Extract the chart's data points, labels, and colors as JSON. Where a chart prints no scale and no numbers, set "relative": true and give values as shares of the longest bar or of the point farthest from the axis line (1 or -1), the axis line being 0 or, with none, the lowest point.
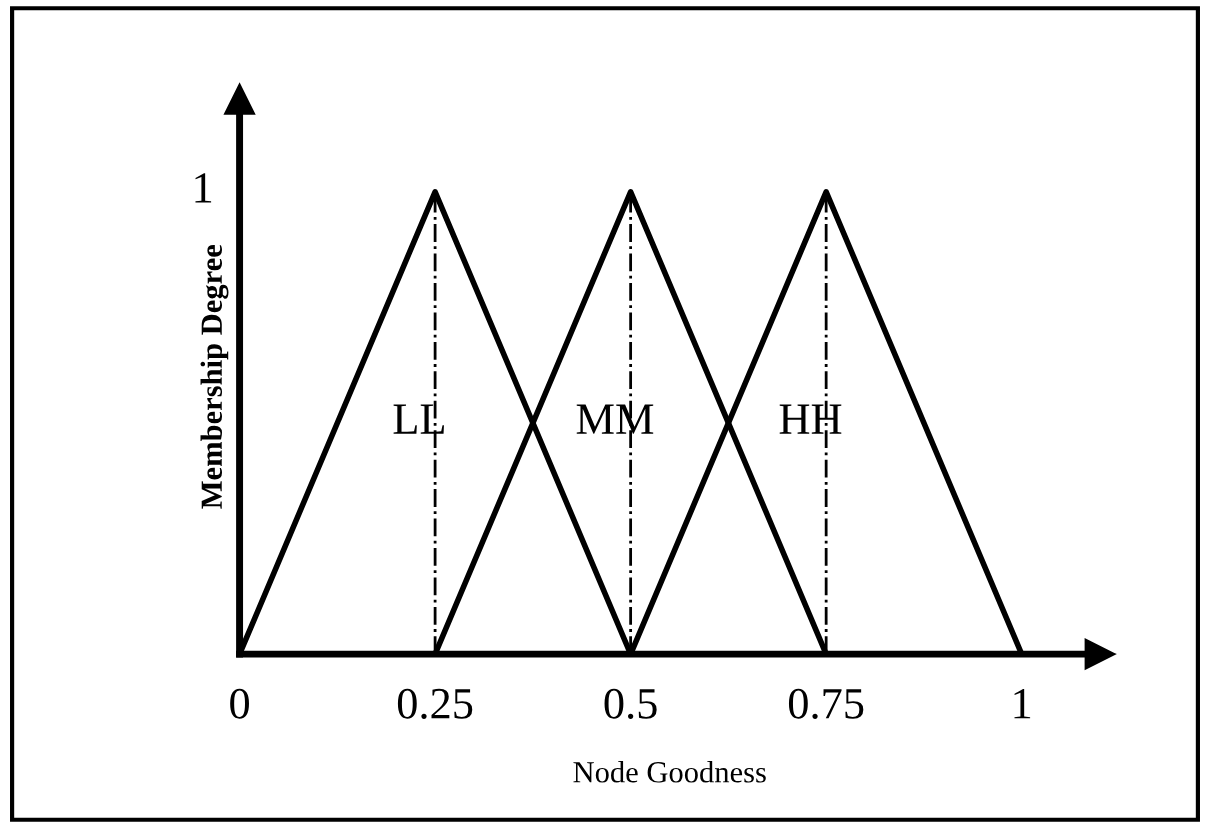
{
  "chart_data": {
    "type": "line",
    "xlabel": "Node Goodness",
    "ylabel": "Membership Degree",
    "series": [
      {
        "name": "LL",
        "color": "#000000",
        "x": [
          0,
          0.25,
          0.5
        ],
        "values": [
          0,
          1,
          0
        ]
      },
      {
        "name": "MM",
        "color": "#000000",
        "x": [
          0.25,
          0.5,
          0.75
        ],
        "values": [
          0,
          1,
          0
        ]
      },
      {
        "name": "HH",
        "color": "#000000",
        "x": [
          0.5,
          0.75,
          1
        ],
        "values": [
          0,
          1,
          0
        ]
      }
    ],
    "xlim": [
      0,
      1.1
    ],
    "xticks": [
      0,
      0.25,
      0.5,
      0.75,
      1
    ],
    "relative": true,
    "annotations": [
      "1"
    ],
    "ref_lines": [
      {
        "axis": "x",
        "value": 0.25,
        "color": "#000000",
        "line_style": "dashdot"
      },
      {
        "axis": "x",
        "value": 0.5,
        "color": "#000000",
        "line_style": "dashdot"
      },
      {
        "axis": "x",
        "value": 0.75,
        "color": "#000000",
        "line_style": "dashdot"
      }
    ],
    "line_style": "solid",
    "grid": false,
    "legend": false
  }
}
